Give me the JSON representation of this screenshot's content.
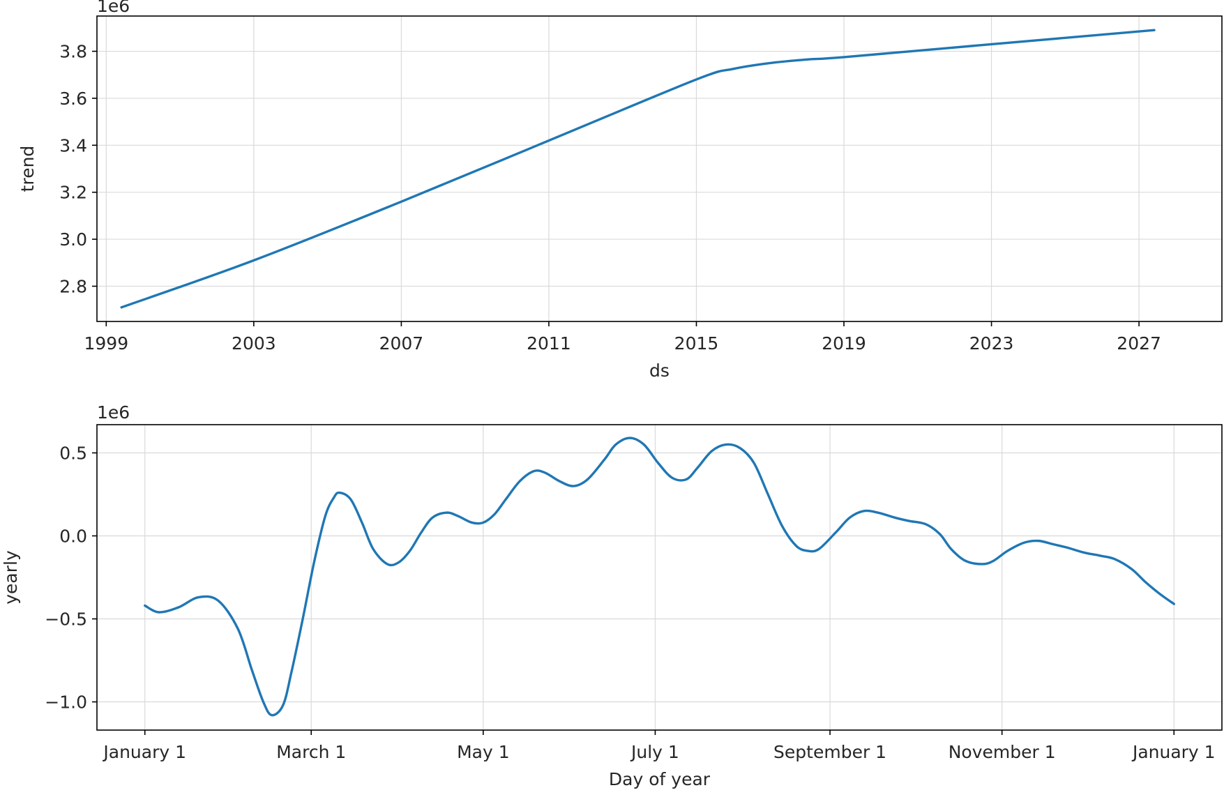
{
  "chart_data": [
    {
      "type": "line",
      "xlabel": "ds",
      "ylabel": "trend",
      "offset_text": "1e6",
      "grid": true,
      "color": "#1f77b4",
      "x_is_date": true,
      "xlim": [
        "1998-10-01",
        "2029-04-01"
      ],
      "ylim": [
        2.65,
        3.95
      ],
      "x_ticks": [
        {
          "value": "1999-01-01",
          "label": "1999"
        },
        {
          "value": "2003-01-01",
          "label": "2003"
        },
        {
          "value": "2007-01-01",
          "label": "2007"
        },
        {
          "value": "2011-01-01",
          "label": "2011"
        },
        {
          "value": "2015-01-01",
          "label": "2015"
        },
        {
          "value": "2019-01-01",
          "label": "2019"
        },
        {
          "value": "2023-01-01",
          "label": "2023"
        },
        {
          "value": "2027-01-01",
          "label": "2027"
        }
      ],
      "y_ticks": [
        {
          "value": 2.8,
          "label": "2.8"
        },
        {
          "value": 3.0,
          "label": "3.0"
        },
        {
          "value": 3.2,
          "label": "3.2"
        },
        {
          "value": 3.4,
          "label": "3.4"
        },
        {
          "value": 3.6,
          "label": "3.6"
        },
        {
          "value": 3.8,
          "label": "3.8"
        }
      ],
      "series": [
        {
          "x": [
            "1999-06-01",
            "2003-01-01",
            "2007-01-01",
            "2011-01-01",
            "2015-01-01",
            "2016-01-01",
            "2017-01-01",
            "2018-01-01",
            "2019-01-01",
            "2023-01-01",
            "2027-06-01"
          ],
          "y": [
            2.71,
            2.91,
            3.16,
            3.42,
            3.68,
            3.725,
            3.75,
            3.765,
            3.775,
            3.83,
            3.89
          ]
        }
      ]
    },
    {
      "type": "line",
      "xlabel": "Day of year",
      "ylabel": "yearly",
      "offset_text": "1e6",
      "grid": true,
      "color": "#1f77b4",
      "xlim": [
        -17,
        382
      ],
      "ylim": [
        -1.17,
        0.67
      ],
      "x_ticks": [
        {
          "value": 0,
          "label": "January 1"
        },
        {
          "value": 59,
          "label": "March 1"
        },
        {
          "value": 120,
          "label": "May 1"
        },
        {
          "value": 181,
          "label": "July 1"
        },
        {
          "value": 243,
          "label": "September 1"
        },
        {
          "value": 304,
          "label": "November 1"
        },
        {
          "value": 365,
          "label": "January 1"
        }
      ],
      "y_ticks": [
        {
          "value": -1.0,
          "label": "−1.0"
        },
        {
          "value": -0.5,
          "label": "−0.5"
        },
        {
          "value": 0.0,
          "label": "0.0"
        },
        {
          "value": 0.5,
          "label": "0.5"
        }
      ],
      "series": [
        {
          "x": [
            0,
            5,
            12,
            19,
            26,
            33,
            38,
            42,
            45,
            49,
            52,
            56,
            60,
            64,
            67,
            69,
            73,
            77,
            81,
            86,
            90,
            94,
            98,
            102,
            107,
            111,
            116,
            120,
            124,
            128,
            133,
            138,
            142,
            147,
            152,
            157,
            163,
            167,
            172,
            177,
            182,
            187,
            192,
            196,
            201,
            206,
            211,
            216,
            221,
            226,
            231,
            235,
            239,
            245,
            250,
            255,
            260,
            266,
            271,
            277,
            282,
            286,
            291,
            297,
            301,
            306,
            312,
            317,
            322,
            327,
            333,
            339,
            344,
            350,
            355,
            360,
            365
          ],
          "y": [
            -0.42,
            -0.46,
            -0.43,
            -0.37,
            -0.39,
            -0.56,
            -0.81,
            -1.0,
            -1.08,
            -1.02,
            -0.82,
            -0.5,
            -0.16,
            0.12,
            0.23,
            0.26,
            0.22,
            0.08,
            -0.08,
            -0.17,
            -0.16,
            -0.09,
            0.02,
            0.11,
            0.14,
            0.12,
            0.08,
            0.08,
            0.13,
            0.22,
            0.33,
            0.39,
            0.38,
            0.33,
            0.3,
            0.34,
            0.46,
            0.55,
            0.59,
            0.55,
            0.44,
            0.35,
            0.34,
            0.41,
            0.51,
            0.55,
            0.53,
            0.44,
            0.25,
            0.06,
            -0.06,
            -0.09,
            -0.08,
            0.02,
            0.11,
            0.15,
            0.14,
            0.11,
            0.09,
            0.07,
            0.01,
            -0.08,
            -0.15,
            -0.17,
            -0.15,
            -0.09,
            -0.04,
            -0.03,
            -0.05,
            -0.07,
            -0.1,
            -0.12,
            -0.14,
            -0.2,
            -0.28,
            -0.35,
            -0.41
          ]
        }
      ]
    }
  ]
}
